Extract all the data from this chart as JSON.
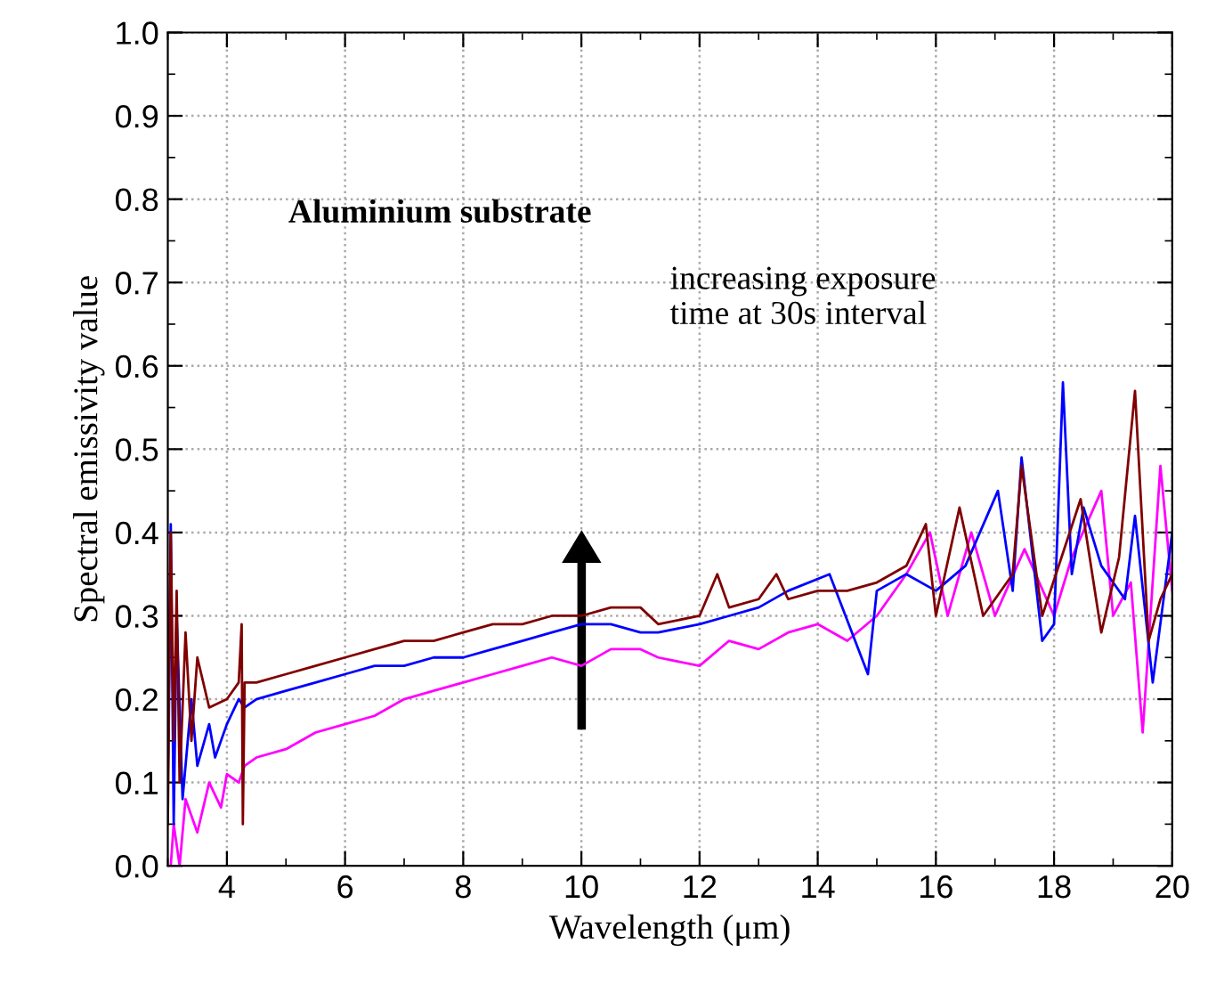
{
  "chart_data": {
    "type": "line",
    "xlabel": "Wavelength (μm)",
    "ylabel": "Spectral emissivity value",
    "annotations": [
      "Aluminium substrate",
      "increasing exposure\ntime at 30s interval"
    ],
    "xlim": [
      3,
      20
    ],
    "ylim": [
      0,
      1
    ],
    "xticks": [
      4,
      6,
      8,
      10,
      12,
      14,
      16,
      18,
      20
    ],
    "yticks": [
      {
        "value": 0,
        "label": "0.0"
      },
      0.1,
      0.2,
      0.3,
      0.4,
      0.5,
      0.6,
      0.7,
      0.8,
      0.9,
      {
        "value": 1,
        "label": "1.0"
      }
    ],
    "grid": true,
    "marker": "none",
    "line_style": "solid",
    "series": [
      {
        "color": "#ff00ff",
        "x": [
          3.05,
          3.1,
          3.2,
          3.3,
          3.5,
          3.7,
          3.9,
          4.0,
          4.2,
          4.3,
          4.5,
          5,
          5.5,
          6,
          6.5,
          7,
          7.5,
          8,
          8.5,
          9,
          9.5,
          10,
          10.5,
          11,
          11.3,
          12,
          12.5,
          13,
          13.5,
          14,
          14.5,
          15,
          15.5,
          15.9,
          16.2,
          16.6,
          17,
          17.5,
          18,
          18.3,
          18.8,
          19,
          19.3,
          19.5,
          19.8,
          20
        ],
        "values": [
          0.0,
          0.05,
          0.0,
          0.08,
          0.04,
          0.1,
          0.07,
          0.11,
          0.1,
          0.12,
          0.13,
          0.14,
          0.16,
          0.17,
          0.18,
          0.2,
          0.21,
          0.22,
          0.23,
          0.24,
          0.25,
          0.24,
          0.26,
          0.26,
          0.25,
          0.24,
          0.27,
          0.26,
          0.28,
          0.29,
          0.27,
          0.3,
          0.35,
          0.4,
          0.3,
          0.4,
          0.3,
          0.38,
          0.3,
          0.37,
          0.45,
          0.3,
          0.34,
          0.16,
          0.48,
          0.33
        ]
      },
      {
        "color": "#0000ff",
        "x": [
          3.0,
          3.05,
          3.1,
          3.15,
          3.25,
          3.4,
          3.5,
          3.7,
          3.8,
          4.0,
          4.2,
          4.3,
          4.5,
          5,
          5.5,
          6,
          6.5,
          7,
          7.5,
          8,
          8.5,
          9,
          9.5,
          10,
          10.5,
          11,
          11.3,
          12,
          12.5,
          13,
          13.5,
          14.2,
          14.85,
          15,
          15.5,
          16,
          16.5,
          17.05,
          17.3,
          17.45,
          17.8,
          18.0,
          18.15,
          18.3,
          18.5,
          18.8,
          19.2,
          19.37,
          19.67,
          20
        ],
        "values": [
          0.1,
          0.41,
          0.05,
          0.3,
          0.08,
          0.2,
          0.12,
          0.17,
          0.13,
          0.17,
          0.2,
          0.19,
          0.2,
          0.21,
          0.22,
          0.23,
          0.24,
          0.24,
          0.25,
          0.25,
          0.26,
          0.27,
          0.28,
          0.29,
          0.29,
          0.28,
          0.28,
          0.29,
          0.3,
          0.31,
          0.33,
          0.35,
          0.23,
          0.33,
          0.35,
          0.33,
          0.36,
          0.45,
          0.33,
          0.49,
          0.27,
          0.29,
          0.58,
          0.35,
          0.43,
          0.36,
          0.32,
          0.42,
          0.22,
          0.4
        ]
      },
      {
        "color": "#800000",
        "x": [
          3.0,
          3.05,
          3.1,
          3.15,
          3.2,
          3.3,
          3.4,
          3.5,
          3.7,
          4.0,
          4.2,
          4.25,
          4.27,
          4.3,
          4.5,
          5,
          5.5,
          6,
          6.5,
          7,
          7.5,
          8,
          8.5,
          9,
          9.5,
          10,
          10.5,
          11,
          11.3,
          12,
          12.3,
          12.5,
          13,
          13.3,
          13.5,
          14,
          14.5,
          15,
          15.5,
          15.83,
          16.0,
          16.4,
          16.8,
          17.3,
          17.45,
          17.8,
          18.45,
          18.8,
          19.1,
          19.37,
          19.6,
          19.8,
          20
        ],
        "values": [
          0.05,
          0.4,
          0.15,
          0.33,
          0.1,
          0.28,
          0.15,
          0.25,
          0.19,
          0.2,
          0.22,
          0.29,
          0.05,
          0.22,
          0.22,
          0.23,
          0.24,
          0.25,
          0.26,
          0.27,
          0.27,
          0.28,
          0.29,
          0.29,
          0.3,
          0.3,
          0.31,
          0.31,
          0.29,
          0.3,
          0.35,
          0.31,
          0.32,
          0.35,
          0.32,
          0.33,
          0.33,
          0.34,
          0.36,
          0.41,
          0.3,
          0.43,
          0.3,
          0.35,
          0.48,
          0.3,
          0.44,
          0.28,
          0.37,
          0.57,
          0.27,
          0.32,
          0.35
        ]
      }
    ]
  }
}
